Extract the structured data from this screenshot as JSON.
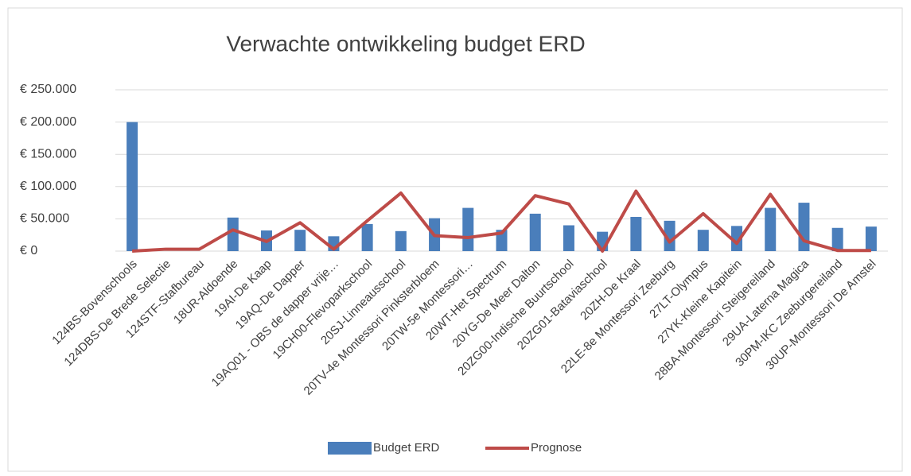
{
  "chart_data": {
    "type": "bar_line",
    "title": "Verwachte ontwikkeling budget ERD",
    "categories": [
      "124BS-Bovenschools",
      "124DBS-De Brede Selectie",
      "124STF-Stafbureau",
      "18UR-Aldoende",
      "19AI-De Kaap",
      "19AQ-De Dapper",
      "19AQ01 - OBS de dapper vrije…",
      "19CH00-Flevoparkschool",
      "20SJ-Linneausschool",
      "20TV-4e Montessori Pinksterbloem",
      "20TW-5e Montessori…",
      "20WT-Het Spectrum",
      "20YG-De Meer Dalton",
      "20ZG00-Indische Buurtschool",
      "20ZG01-Bataviaschool",
      "20ZH-De Kraal",
      "22LE-8e Montessori Zeeburg",
      "27LT-Olympus",
      "27YK-Kleine Kapitein",
      "28BA-Montessori Steigereiland",
      "29UA-Laterna Magica",
      "30PM-IKC Zeeburgereiland",
      "30UP-Montessori De Amstel"
    ],
    "series": [
      {
        "name": "Budget ERD",
        "type": "bar",
        "color": "#4a7ebb",
        "values": [
          200000,
          0,
          0,
          52000,
          32000,
          33000,
          23000,
          42000,
          31000,
          51000,
          67000,
          33000,
          58000,
          40000,
          30000,
          53000,
          47000,
          33000,
          39000,
          67000,
          75000,
          36000,
          38000
        ]
      },
      {
        "name": "Prognose",
        "type": "line",
        "color": "#be4b48",
        "values": [
          0,
          3000,
          3000,
          33000,
          15000,
          44000,
          3000,
          47000,
          90000,
          24000,
          21000,
          28000,
          86000,
          73000,
          0,
          93000,
          14000,
          58000,
          12000,
          88000,
          16000,
          1000,
          1000
        ]
      }
    ],
    "ylim": [
      0,
      250000
    ],
    "yticks": [
      {
        "value": 0,
        "label": "€ 0"
      },
      {
        "value": 50000,
        "label": "€ 50.000"
      },
      {
        "value": 100000,
        "label": "€ 100.000"
      },
      {
        "value": 150000,
        "label": "€ 150.000"
      },
      {
        "value": 200000,
        "label": "€ 200.000"
      },
      {
        "value": 250000,
        "label": "€ 250.000"
      }
    ],
    "grid": true,
    "legend": "bottom"
  }
}
